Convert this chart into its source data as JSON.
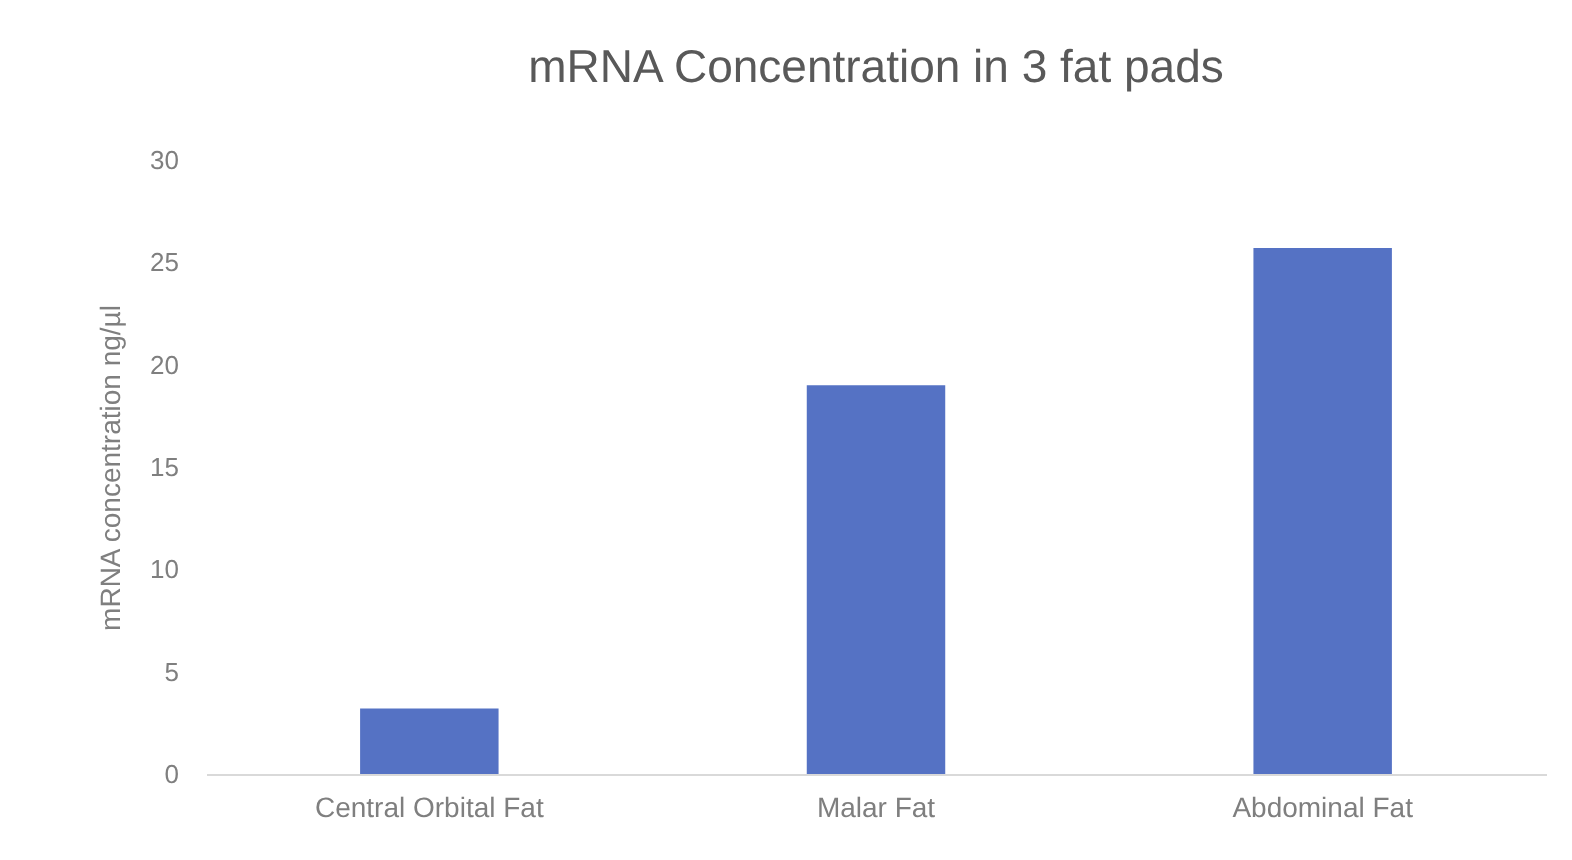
{
  "chart_data": {
    "type": "bar",
    "title": "mRNA Concentration in 3 fat pads",
    "ylabel": "mRNA concentration ng/µl",
    "categories": [
      "Central Orbital Fat",
      "Malar Fat",
      "Abdominal Fat"
    ],
    "values": [
      3.2,
      19.0,
      25.7
    ],
    "color": "#5572c4",
    "ylim": [
      0,
      30
    ],
    "yticks": [
      0,
      5,
      10,
      15,
      20,
      25,
      30
    ],
    "grid": false
  }
}
